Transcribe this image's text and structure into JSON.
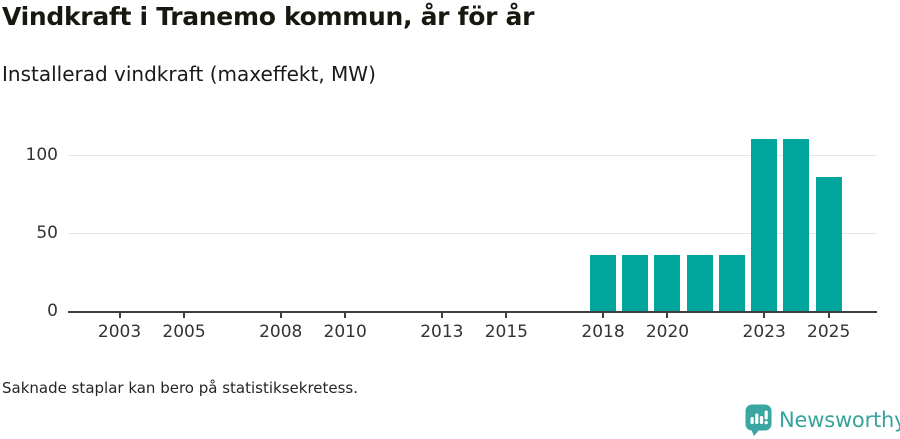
{
  "header": {
    "title": "Vindkraft i Tranemo kommun, år för år",
    "subtitle": "Installerad vindkraft (maxeffekt, MW)"
  },
  "footnote": "Saknade staplar kan bero på statistiksekretess.",
  "logo": {
    "name": "Newsworthy",
    "icon": "speech-bubble-bar-chart-icon",
    "color": "#3aa6a1"
  },
  "chart_data": {
    "type": "bar",
    "title": "Vindkraft i Tranemo kommun, år för år",
    "subtitle": "Installerad vindkraft (maxeffekt, MW)",
    "ylabel": "Installerad vindkraft (maxeffekt, MW)",
    "xlabel": "",
    "unit": "MW",
    "categories": [
      2002,
      2003,
      2004,
      2005,
      2006,
      2007,
      2008,
      2009,
      2010,
      2011,
      2012,
      2013,
      2014,
      2015,
      2016,
      2017,
      2018,
      2019,
      2020,
      2021,
      2022,
      2023,
      2024,
      2025
    ],
    "values": [
      null,
      null,
      null,
      null,
      null,
      null,
      null,
      null,
      null,
      null,
      null,
      null,
      null,
      null,
      null,
      null,
      36,
      36,
      36,
      36,
      36,
      110,
      110,
      86
    ],
    "xticks": [
      2003,
      2005,
      2008,
      2010,
      2013,
      2015,
      2018,
      2020,
      2023,
      2025
    ],
    "yticks": [
      0,
      50,
      100
    ],
    "ylim": [
      0,
      116
    ],
    "xlim": [
      2001.4,
      2026.5
    ],
    "bar_color": "#00a69b",
    "grid": "y-only",
    "legend": "none",
    "missing_bars_note": "Saknade staplar kan bero på statistiksekretess."
  }
}
